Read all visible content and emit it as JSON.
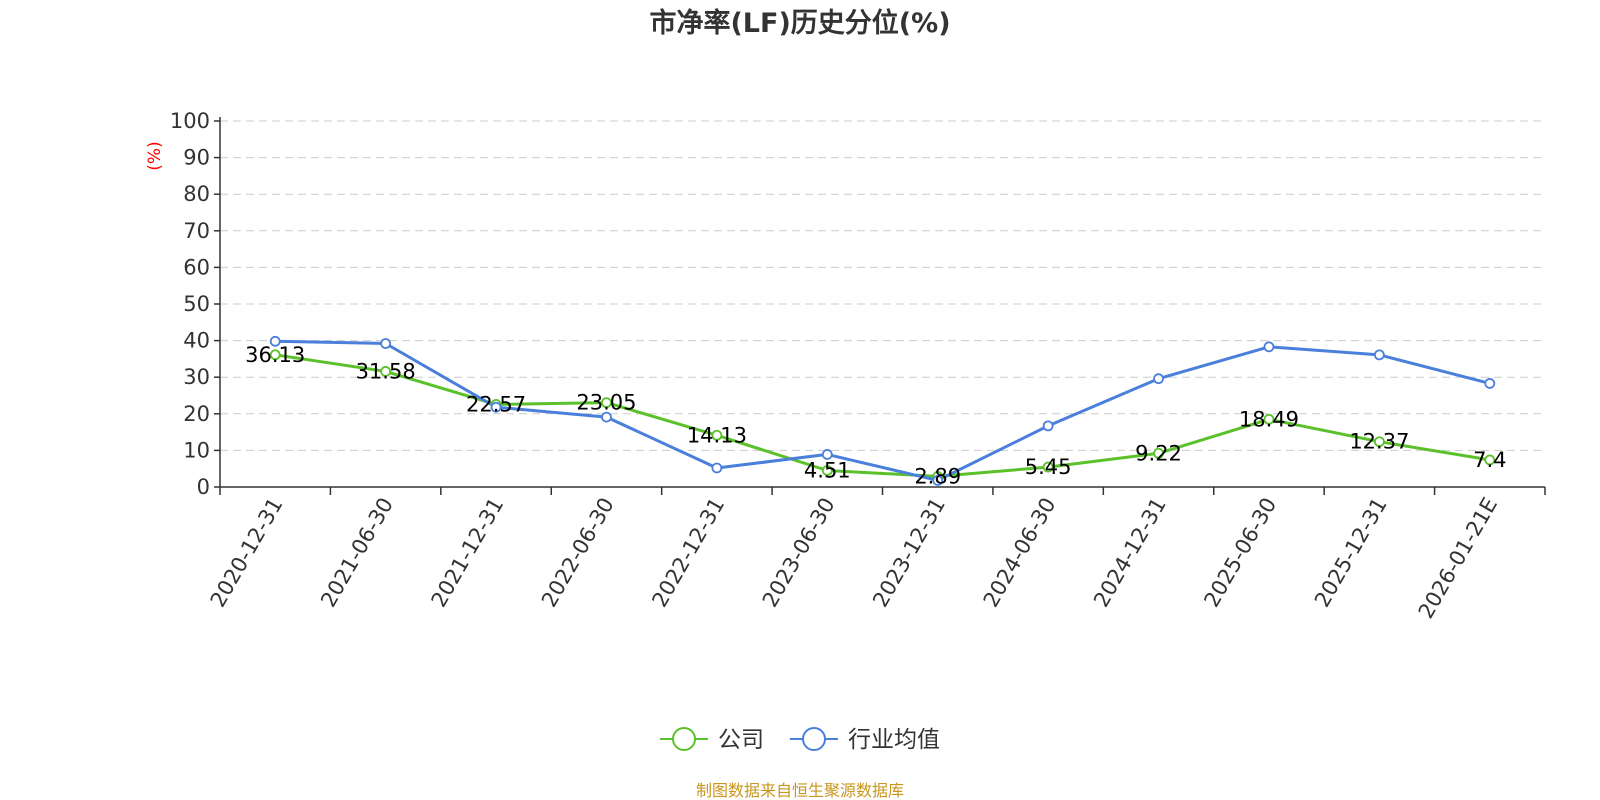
{
  "chart_data": {
    "type": "line",
    "title": "市净率(LF)历史分位(%)",
    "unit_label": "(%)",
    "categories": [
      "2020-12-31",
      "2021-06-30",
      "2021-12-31",
      "2022-06-30",
      "2022-12-31",
      "2023-06-30",
      "2023-12-31",
      "2024-06-30",
      "2024-12-31",
      "2025-06-30",
      "2025-12-31",
      "2026-01-21E"
    ],
    "ylim": [
      0,
      100
    ],
    "yticks": [
      0,
      10,
      20,
      30,
      40,
      50,
      60,
      70,
      80,
      90,
      100
    ],
    "grid": true,
    "legend_position": "bottom",
    "series": [
      {
        "name": "公司",
        "color": "#5ac12a",
        "values": [
          36.13,
          31.58,
          22.57,
          23.05,
          14.13,
          4.51,
          2.89,
          5.45,
          9.22,
          18.49,
          12.37,
          7.4
        ],
        "labels": [
          "36.13",
          "31.58",
          "22.57",
          "23.05",
          "14.13",
          "4.51",
          "2.89",
          "5.45",
          "9.22",
          "18.49",
          "12.37",
          "7.4"
        ]
      },
      {
        "name": "行业均值",
        "color": "#4a7fdc",
        "values": [
          39.8,
          39.2,
          21.8,
          19.1,
          5.2,
          8.9,
          1.8,
          16.7,
          29.6,
          38.3,
          36.1,
          28.3
        ]
      }
    ]
  },
  "footer": {
    "source": "制图数据来自恒生聚源数据库"
  }
}
